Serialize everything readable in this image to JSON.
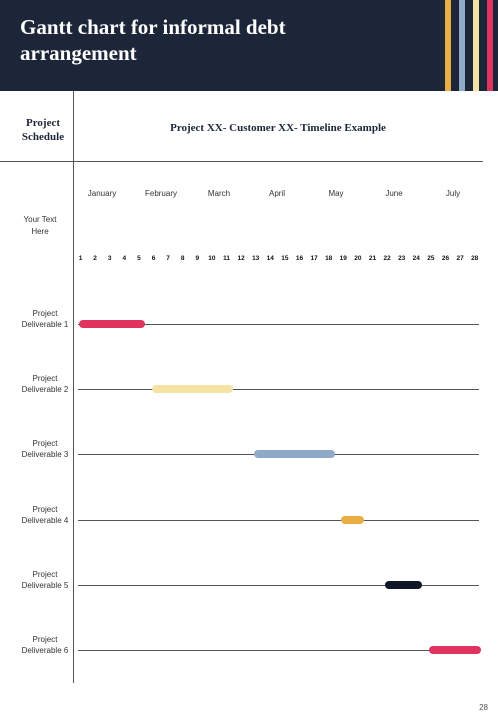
{
  "header": {
    "title": "Gantt chart for informal debt arrangement",
    "stripe_colors": [
      "#e9ad45",
      "#8faac6",
      "#f4e3a4",
      "#e0335f"
    ]
  },
  "table": {
    "schedule_header": "Project Schedule",
    "chart_title": "Project XX- Customer XX- Timeline Example",
    "row_header_label": "Your Text Here"
  },
  "chart_data": {
    "type": "gantt",
    "months": [
      "January",
      "February",
      "March",
      "April",
      "May",
      "June",
      "July"
    ],
    "days": [
      "1",
      "2",
      "3",
      "4",
      "5",
      "6",
      "7",
      "8",
      "9",
      "10",
      "11",
      "12",
      "13",
      "14",
      "15",
      "16",
      "17",
      "18",
      "19",
      "20",
      "21",
      "22",
      "23",
      "24",
      "25",
      "26",
      "27",
      "28"
    ],
    "tasks": [
      {
        "label": "Project Deliverable 1",
        "start": 1,
        "end": 5,
        "color": "#e0335f"
      },
      {
        "label": "Project Deliverable 2",
        "start": 6,
        "end": 11,
        "color": "#f4e3a4"
      },
      {
        "label": "Project Deliverable 3",
        "start": 13,
        "end": 18,
        "color": "#8faac6"
      },
      {
        "label": "Project Deliverable 4",
        "start": 19,
        "end": 20,
        "color": "#e9ad45"
      },
      {
        "label": "Project Deliverable 5",
        "start": 22,
        "end": 24,
        "color": "#0f1626"
      },
      {
        "label": "Project Deliverable 6",
        "start": 25,
        "end": 28,
        "color": "#e0335f"
      }
    ]
  },
  "footer": {
    "page_number": "28"
  }
}
